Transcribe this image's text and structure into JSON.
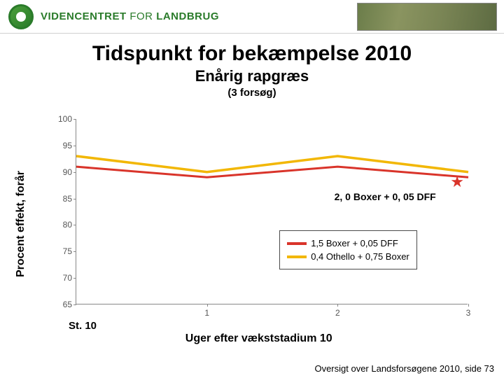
{
  "header": {
    "brand_bold": "VIDENCENTRET",
    "brand_light": " FOR ",
    "brand_end": "LANDBRUG"
  },
  "titles": {
    "main": "Tidspunkt for bekæmpelse 2010",
    "sub": "Enårig rapgræs",
    "note": "(3 forsøg)"
  },
  "chart": {
    "type": "line",
    "ylabel": "Procent effekt, forår",
    "xlabel": "Uger efter vækststadium 10",
    "st10_label": "St. 10",
    "ylim": [
      65,
      100
    ],
    "ytick_step": 5,
    "yticks": [
      65,
      70,
      75,
      80,
      85,
      90,
      95,
      100
    ],
    "xvalues": [
      0,
      1,
      2,
      3
    ],
    "xticks": [
      1,
      2,
      3
    ],
    "series": [
      {
        "name": "1,5 Boxer + 0,05 DFF",
        "color": "#d9342a",
        "width": 3,
        "y": [
          91,
          89,
          91,
          89
        ]
      },
      {
        "name": "0,4 Othello + 0,75 Boxer",
        "color": "#f2b705",
        "width": 3.5,
        "y": [
          93,
          90,
          93,
          90
        ]
      }
    ],
    "annotation": {
      "text": "2, 0 Boxer + 0, 05 DFF",
      "star_color": "#d9342a",
      "star_y": 88
    },
    "background_color": "#ffffff",
    "axis_color": "#888888",
    "tick_color": "#555555"
  },
  "legend": {
    "items": [
      {
        "label": "1,5 Boxer + 0,05 DFF",
        "color": "#d9342a"
      },
      {
        "label": "0,4 Othello + 0,75 Boxer",
        "color": "#f2b705"
      }
    ]
  },
  "footer": {
    "text": "Oversigt over Landsforsøgene 2010, side 73"
  }
}
